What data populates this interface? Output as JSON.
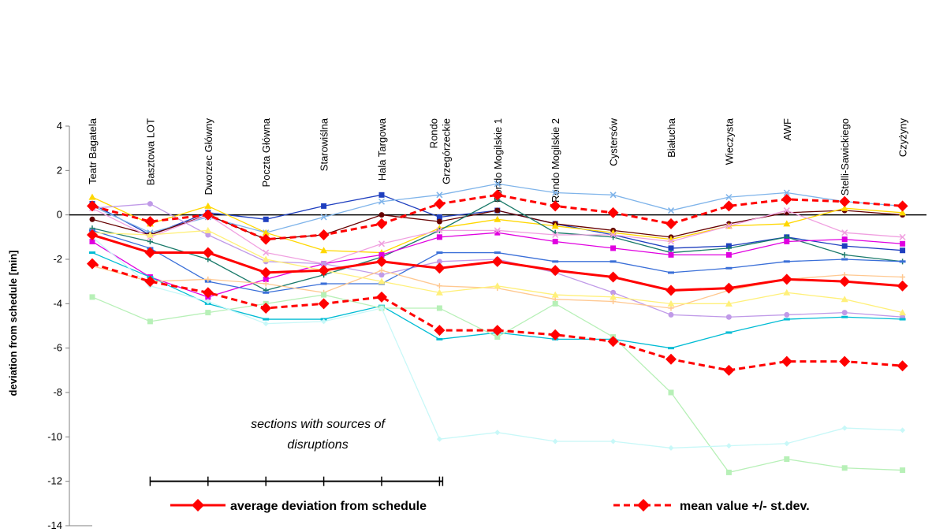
{
  "chart_data": {
    "type": "line",
    "ylabel": "deviation from schedule [min]",
    "ylim": [
      -14,
      4
    ],
    "yticks": [
      4,
      2,
      0,
      -2,
      -4,
      -6,
      -8,
      -10,
      -12,
      -14
    ],
    "categories": [
      "Teatr Bagatela",
      "Basztowa LOT",
      "Dworzec Główny",
      "Poczta Główna",
      "Starowiślna",
      "Hala Targowa",
      "Rondo\nGrzegórzeckie",
      "Rondo Mogilskie 1",
      "Rondo Mogilskie 2",
      "Cystersów",
      "Białucha",
      "Wieczysta",
      "AWF",
      "Stelli-Sawickiego",
      "Czyżyny"
    ],
    "annotation": "sections with sources of\ndisruptions",
    "disruption_range": [
      1,
      6
    ],
    "legend": {
      "average": "average deviation from schedule",
      "band": "mean value +/- st.dev."
    },
    "average": [
      -0.9,
      -1.7,
      -1.7,
      -2.6,
      -2.5,
      -2.1,
      -2.4,
      -2.1,
      -2.5,
      -2.8,
      -3.4,
      -3.3,
      -2.9,
      -3.0,
      -3.2
    ],
    "upper_band": [
      0.4,
      -0.3,
      0.0,
      -1.1,
      -0.9,
      -0.4,
      0.5,
      0.9,
      0.4,
      0.1,
      -0.4,
      0.4,
      0.7,
      0.6,
      0.4
    ],
    "lower_band": [
      -2.2,
      -3.0,
      -3.5,
      -4.2,
      -4.0,
      -3.7,
      -5.2,
      -5.2,
      -5.4,
      -5.7,
      -6.5,
      -7.0,
      -6.6,
      -6.6,
      -6.8
    ],
    "series": [
      {
        "color": "#1f3fbf",
        "marker": "square",
        "values": [
          0.5,
          -0.9,
          0.1,
          -0.2,
          0.4,
          0.9,
          -0.1,
          0.2,
          -0.4,
          -0.9,
          -1.5,
          -1.4,
          -1.0,
          -1.4,
          -1.6
        ]
      },
      {
        "color": "#7fb4ea",
        "marker": "x",
        "values": [
          0.4,
          -0.8,
          -0.1,
          -0.8,
          -0.1,
          0.6,
          0.9,
          1.4,
          1.0,
          0.9,
          0.2,
          0.8,
          1.0,
          0.6,
          0.4
        ]
      },
      {
        "color": "#660000",
        "marker": "circle",
        "values": [
          -0.2,
          -0.9,
          0.0,
          -1.1,
          -0.9,
          0.0,
          -0.3,
          0.2,
          -0.4,
          -0.7,
          -1.0,
          -0.4,
          0.1,
          0.2,
          0.0
        ]
      },
      {
        "color": "#ffd700",
        "marker": "triangle",
        "values": [
          0.8,
          -0.4,
          0.4,
          -0.8,
          -1.6,
          -1.7,
          -0.6,
          -0.2,
          -0.5,
          -0.8,
          -1.1,
          -0.5,
          -0.4,
          0.3,
          0.1
        ]
      },
      {
        "color": "#1a7a6a",
        "marker": "plus",
        "values": [
          -0.6,
          -1.2,
          -2.0,
          -3.4,
          -2.7,
          -1.9,
          -0.7,
          0.7,
          -0.8,
          -1.0,
          -1.7,
          -1.5,
          -1.0,
          -1.8,
          -2.1
        ]
      },
      {
        "color": "#e000e0",
        "marker": "square",
        "values": [
          -1.2,
          -2.8,
          -3.7,
          -2.9,
          -2.2,
          -1.8,
          -1.0,
          -0.8,
          -1.2,
          -1.5,
          -1.8,
          -1.8,
          -1.2,
          -1.1,
          -1.3
        ]
      },
      {
        "color": "#f0a0e0",
        "marker": "x",
        "values": [
          0.3,
          -1.0,
          0.0,
          -1.7,
          -2.2,
          -1.3,
          -0.7,
          -0.7,
          -0.9,
          -0.9,
          -1.2,
          -0.5,
          0.2,
          -0.8,
          -1.0
        ]
      },
      {
        "color": "#c09ae8",
        "marker": "circle",
        "values": [
          0.3,
          0.5,
          -0.9,
          -2.1,
          -2.2,
          -2.7,
          -2.1,
          -2.0,
          -2.6,
          -3.5,
          -4.5,
          -4.6,
          -4.5,
          -4.4,
          -4.6
        ]
      },
      {
        "color": "#3a6fd8",
        "marker": "dash",
        "values": [
          -0.7,
          -1.5,
          -3.0,
          -3.5,
          -3.1,
          -3.1,
          -1.7,
          -1.7,
          -2.1,
          -2.1,
          -2.6,
          -2.4,
          -2.1,
          -2.0,
          -2.1
        ]
      },
      {
        "color": "#00bcd4",
        "marker": "dash",
        "values": [
          -1.7,
          -2.8,
          -4.0,
          -4.7,
          -4.7,
          -4.1,
          -5.6,
          -5.3,
          -5.6,
          -5.6,
          -6.0,
          -5.3,
          -4.7,
          -4.6,
          -4.7
        ]
      },
      {
        "color": "#ffc890",
        "marker": "plus",
        "values": [
          -2.3,
          -3.0,
          -2.9,
          -3.1,
          -3.5,
          -2.5,
          -3.2,
          -3.3,
          -3.8,
          -3.9,
          -4.2,
          -3.4,
          -2.9,
          -2.7,
          -2.8
        ]
      },
      {
        "color": "#fff07a",
        "marker": "triangle",
        "values": [
          -0.8,
          -0.9,
          -0.7,
          -2.0,
          -2.5,
          -3.0,
          -3.5,
          -3.2,
          -3.6,
          -3.7,
          -4.0,
          -4.0,
          -3.5,
          -3.8,
          -4.4
        ]
      },
      {
        "color": "#b7f0b7",
        "marker": "square",
        "values": [
          -3.7,
          -4.8,
          -4.4,
          -4.0,
          -3.6,
          -4.2,
          -4.2,
          -5.5,
          -4.0,
          -5.5,
          -8.0,
          -11.6,
          -11.0,
          -11.4,
          -11.5
        ]
      },
      {
        "color": "#c8f8f8",
        "marker": "diamond",
        "values": [
          -1.0,
          -3.2,
          -3.9,
          -4.9,
          -4.8,
          -4.2,
          -10.1,
          -9.8,
          -10.2,
          -10.2,
          -10.5,
          -10.4,
          -10.3,
          -9.6,
          -9.7
        ]
      }
    ]
  }
}
